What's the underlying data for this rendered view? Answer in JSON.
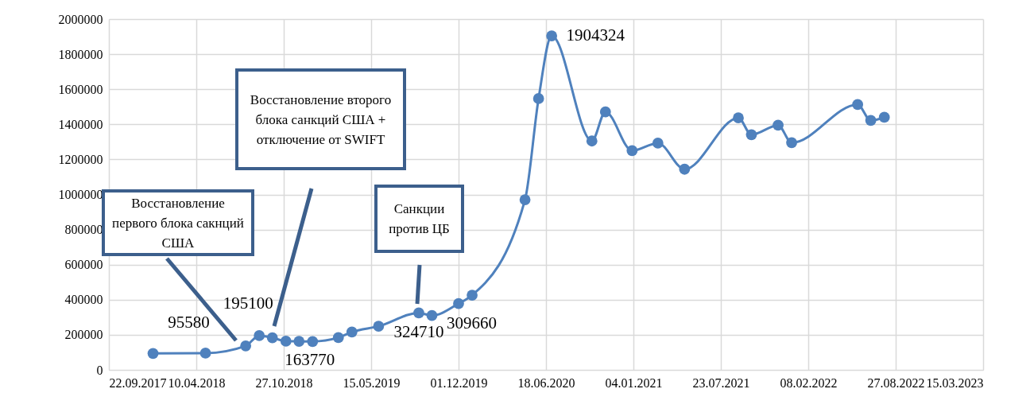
{
  "chart_data": {
    "type": "line",
    "color": "#4f81bd",
    "marker": "circle",
    "grid": true,
    "x": [
      "2018-01-01",
      "2018-05-01",
      "2018-08-01",
      "2018-09-01",
      "2018-10-01",
      "2018-11-01",
      "2018-12-01",
      "2019-01-01",
      "2019-03-01",
      "2019-04-01",
      "2019-06-01",
      "2019-09-01",
      "2019-10-01",
      "2019-12-01",
      "2020-01-01",
      "2020-05-01",
      "2020-06-01",
      "2020-07-01",
      "2020-10-01",
      "2020-11-01",
      "2021-01-01",
      "2021-03-01",
      "2021-05-01",
      "2021-09-01",
      "2021-10-01",
      "2021-12-01",
      "2022-01-01",
      "2022-06-01",
      "2022-07-01",
      "2022-08-01"
    ],
    "values": [
      94000,
      95580,
      137000,
      195100,
      183000,
      163770,
      163000,
      162000,
      184000,
      216000,
      249000,
      324710,
      309660,
      378000,
      426000,
      970000,
      1547000,
      1904324,
      1305000,
      1471000,
      1250000,
      1293000,
      1144000,
      1437000,
      1341000,
      1395000,
      1295000,
      1513000,
      1422000,
      1440000
    ],
    "value_labels": [
      null,
      "95580",
      null,
      "195100",
      null,
      "163770",
      null,
      null,
      null,
      null,
      null,
      "324710",
      "309660",
      null,
      null,
      null,
      null,
      "1904324",
      null,
      null,
      null,
      null,
      null,
      null,
      null,
      null,
      null,
      null,
      null,
      null
    ],
    "xlim": [
      "2017-09-22",
      "2023-03-15"
    ],
    "xticks": [
      {
        "value": "2017-09-22",
        "label": "22.09.2017"
      },
      {
        "value": "2018-04-10",
        "label": "10.04.2018"
      },
      {
        "value": "2018-10-27",
        "label": "27.10.2018"
      },
      {
        "value": "2019-05-15",
        "label": "15.05.2019"
      },
      {
        "value": "2019-12-01",
        "label": "01.12.2019"
      },
      {
        "value": "2020-06-18",
        "label": "18.06.2020"
      },
      {
        "value": "2021-01-04",
        "label": "04.01.2021"
      },
      {
        "value": "2021-07-23",
        "label": "23.07.2021"
      },
      {
        "value": "2022-02-08",
        "label": "08.02.2022"
      },
      {
        "value": "2022-08-27",
        "label": "27.08.2022"
      },
      {
        "value": "2023-03-15",
        "label": "15.03.2023"
      }
    ],
    "ylim": [
      0,
      2000000
    ],
    "yticks": [
      0,
      200000,
      400000,
      600000,
      800000,
      1000000,
      1200000,
      1400000,
      1600000,
      1800000,
      2000000
    ],
    "annotations": [
      "Восстановление первого блока сакнций США",
      "Восстановление второго блока санкций США + отключение от SWIFT",
      "Санкции против ЦБ"
    ]
  }
}
